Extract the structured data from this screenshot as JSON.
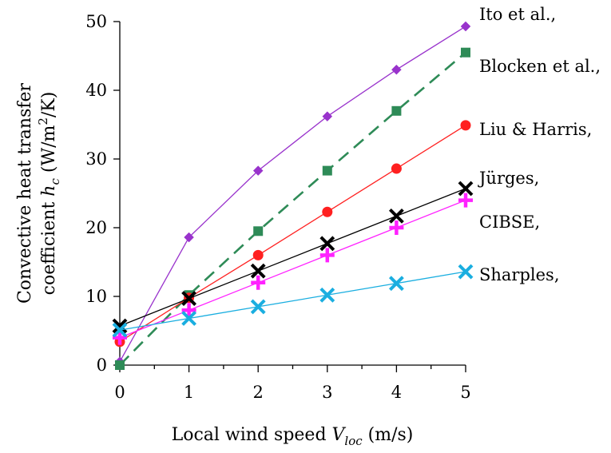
{
  "chart_data": {
    "type": "line",
    "xlabel": {
      "parts": [
        {
          "text": "Local wind speed ",
          "style": "normal"
        },
        {
          "text": "V",
          "style": "italic"
        },
        {
          "text": "loc",
          "style": "italic-sub"
        },
        {
          "text": " (m/s)",
          "style": "normal"
        }
      ]
    },
    "ylabel": {
      "line1": "Convective heat transfer",
      "line2_parts": [
        {
          "text": "coefficient ",
          "style": "normal"
        },
        {
          "text": "h",
          "style": "italic"
        },
        {
          "text": "c",
          "style": "italic-sub"
        },
        {
          "text": " (W/m",
          "style": "normal"
        },
        {
          "text": "2",
          "style": "sup"
        },
        {
          "text": "/K)",
          "style": "normal"
        }
      ]
    },
    "xlim": [
      0,
      5
    ],
    "ylim": [
      0,
      50
    ],
    "xticks": [
      0,
      1,
      2,
      3,
      4,
      5
    ],
    "yticks": [
      0,
      10,
      20,
      30,
      40,
      50
    ],
    "grid": false,
    "series": [
      {
        "name": "Ito et al.,",
        "color": "#9933cc",
        "line_style": "solid",
        "marker": "diamond",
        "x": [
          0,
          1,
          2,
          3,
          4,
          5
        ],
        "y": [
          0.5,
          18.6,
          28.3,
          36.2,
          43.0,
          49.3
        ]
      },
      {
        "name": "Blocken et al.,",
        "color": "#2e8b57",
        "line_style": "dashed",
        "marker": "square",
        "x": [
          0,
          1,
          2,
          3,
          4,
          5
        ],
        "y": [
          0.0,
          10.2,
          19.5,
          28.3,
          37.0,
          45.5
        ]
      },
      {
        "name": "Liu & Harris,",
        "color": "#ff2020",
        "line_style": "solid",
        "marker": "circle",
        "x": [
          0,
          1,
          2,
          3,
          4,
          5
        ],
        "y": [
          3.4,
          9.8,
          16.0,
          22.3,
          28.6,
          34.9
        ]
      },
      {
        "name": "Jürges,",
        "color": "#000000",
        "line_style": "solid",
        "marker": "x",
        "x": [
          0,
          1,
          2,
          3,
          4,
          5
        ],
        "y": [
          5.7,
          9.7,
          13.7,
          17.7,
          21.7,
          25.7
        ]
      },
      {
        "name": "CIBSE,",
        "color": "#ff22ff",
        "line_style": "solid",
        "marker": "plus",
        "x": [
          0,
          1,
          2,
          3,
          4,
          5
        ],
        "y": [
          4.0,
          8.0,
          12.0,
          16.0,
          20.0,
          24.0
        ]
      },
      {
        "name": "Sharples,",
        "color": "#1aaee0",
        "line_style": "solid",
        "marker": "x",
        "x": [
          0,
          1,
          2,
          3,
          4,
          5
        ],
        "y": [
          5.1,
          6.8,
          8.5,
          10.2,
          11.9,
          13.6
        ]
      }
    ]
  }
}
